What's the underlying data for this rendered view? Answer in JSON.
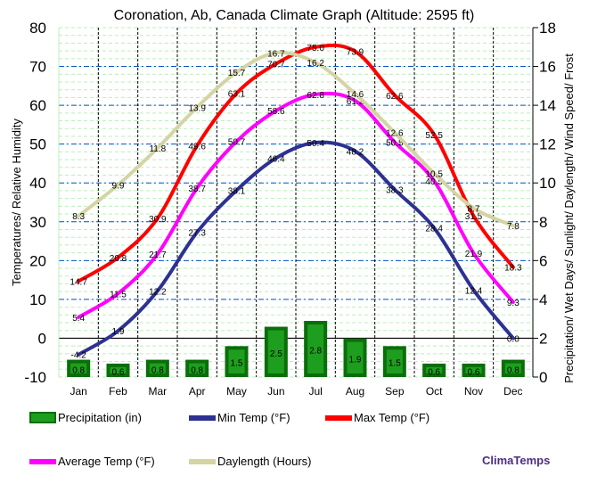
{
  "chart_data": {
    "type": "line",
    "title": "Coronation, Ab, Canada Climate Graph (Altitude: 2595 ft)",
    "ylabel_left": "Temperatures/ Relative Humidity",
    "ylabel_right": "Precipitation/ Wet Days/ Sunlight/ Daylength/ Wind Speed/ Frost",
    "ylim_left": [
      -10,
      80
    ],
    "yticks_left": [
      -10,
      0,
      10,
      20,
      30,
      40,
      50,
      60,
      70,
      80
    ],
    "ylim_right": [
      0,
      18
    ],
    "yticks_right": [
      0,
      2,
      4,
      6,
      8,
      10,
      12,
      14,
      16,
      18
    ],
    "categories": [
      "Jan",
      "Feb",
      "Mar",
      "Apr",
      "May",
      "Jun",
      "Jul",
      "Aug",
      "Sep",
      "Oct",
      "Nov",
      "Dec"
    ],
    "grid": true,
    "legend_placement": "bottom",
    "series": [
      {
        "name": "Precipitation (in)",
        "type": "bar",
        "axis": "right",
        "color": "#1e9e1e",
        "values": [
          0.8,
          0.6,
          0.8,
          0.8,
          1.5,
          2.5,
          2.8,
          1.9,
          1.5,
          0.6,
          0.6,
          0.8
        ]
      },
      {
        "name": "Min Temp (°F)",
        "type": "line",
        "axis": "left",
        "color": "#2e3192",
        "values": [
          -4.2,
          1.9,
          12.2,
          27.3,
          38.1,
          46.4,
          50.4,
          48.2,
          38.3,
          28.4,
          12.4,
          0.0
        ]
      },
      {
        "name": "Max Temp (°F)",
        "type": "line",
        "axis": "left",
        "color": "#ff0000",
        "values": [
          14.7,
          20.8,
          30.9,
          49.6,
          63.1,
          70.7,
          75.0,
          73.9,
          62.6,
          52.5,
          31.5,
          18.3
        ]
      },
      {
        "name": "Average Temp (°F)",
        "type": "line",
        "axis": "left",
        "color": "#ff00ff",
        "values": [
          5.4,
          11.5,
          21.7,
          38.7,
          50.7,
          58.6,
          62.8,
          61.2,
          50.5,
          40.5,
          21.9,
          9.3
        ]
      },
      {
        "name": "Daylength (Hours)",
        "type": "line",
        "axis": "right",
        "color": "#d4d4a4",
        "values": [
          8.3,
          9.9,
          11.8,
          13.9,
          15.7,
          16.7,
          16.2,
          14.6,
          12.6,
          10.5,
          8.7,
          7.8
        ]
      }
    ]
  },
  "brand": "ClimaTemps"
}
